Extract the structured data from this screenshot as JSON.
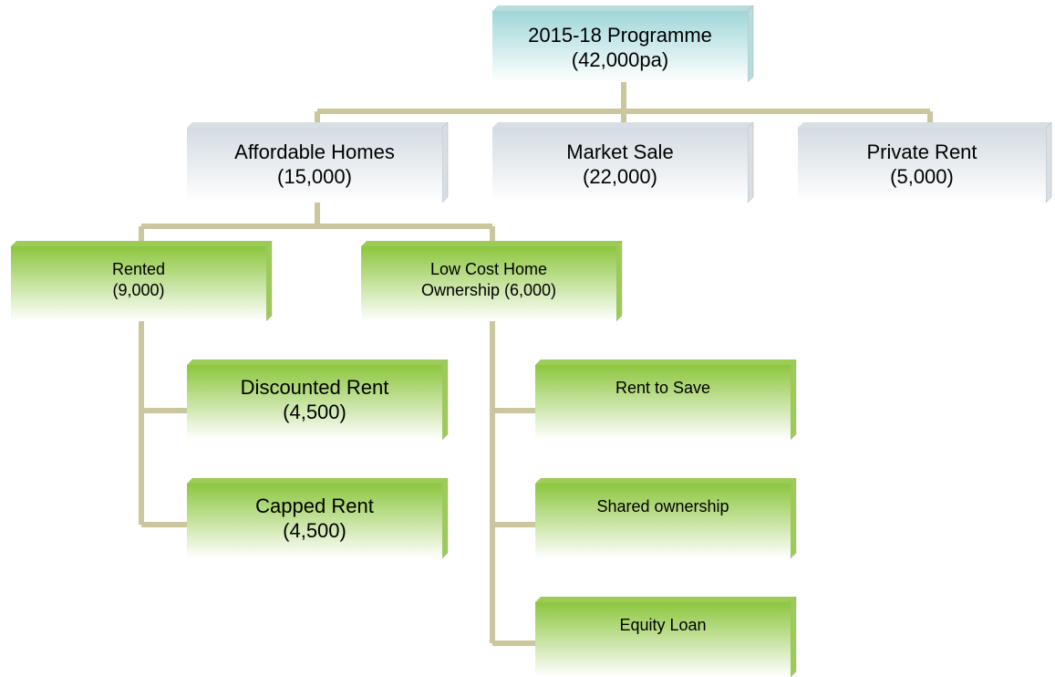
{
  "nodes": [
    {
      "lines": [
        "2015-18 Programme",
        "(42,000pa)"
      ]
    },
    {
      "lines": [
        "Affordable Homes",
        "(15,000)"
      ]
    },
    {
      "lines": [
        "Market Sale",
        "(22,000)"
      ]
    },
    {
      "lines": [
        "Private Rent",
        "(5,000)"
      ]
    },
    {
      "lines": [
        "Rented",
        "(9,000)"
      ]
    },
    {
      "lines": [
        "Low Cost Home",
        "Ownership (6,000)"
      ]
    },
    {
      "lines": [
        "Discounted Rent",
        "(4,500)"
      ]
    },
    {
      "lines": [
        "Capped Rent",
        "(4,500)"
      ]
    },
    {
      "lines": [
        "Rent to Save"
      ]
    },
    {
      "lines": [
        "Shared ownership"
      ]
    },
    {
      "lines": [
        "Equity Loan"
      ]
    }
  ]
}
